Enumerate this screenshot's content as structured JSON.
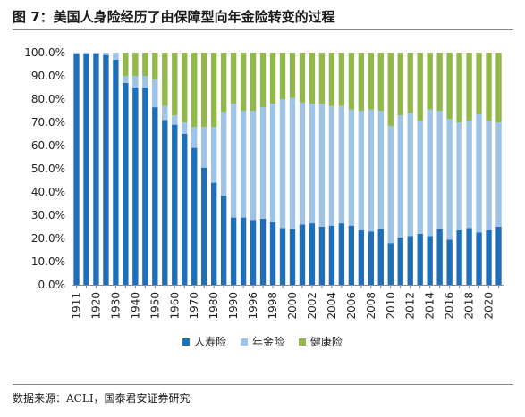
{
  "title": "图 7：美国人身险经历了由保障型向年金险转变的过程",
  "source": "数据来源：ACLI，国泰君安证券研究",
  "colors": {
    "life": "#1f6fb8",
    "annuity": "#9dc3e6",
    "health": "#92b84b",
    "axis": "#8c8c8c"
  },
  "chart_data": {
    "type": "bar",
    "stacked": true,
    "percent": true,
    "ylim": [
      0,
      100
    ],
    "yticks": [
      "0.0%",
      "10.0%",
      "20.0%",
      "30.0%",
      "40.0%",
      "50.0%",
      "60.0%",
      "70.0%",
      "80.0%",
      "90.0%",
      "100.0%"
    ],
    "categories": [
      "1911",
      "1915",
      "1920",
      "1925",
      "1930",
      "1935",
      "1940",
      "1945",
      "1950",
      "1955",
      "1960",
      "1965",
      "1970",
      "1975",
      "1980",
      "1985",
      "1990",
      "1995",
      "1996",
      "1997",
      "1998",
      "1999",
      "2000",
      "2001",
      "2002",
      "2003",
      "2004",
      "2005",
      "2006",
      "2007",
      "2008",
      "2009",
      "2010",
      "2011",
      "2012",
      "2013",
      "2014",
      "2015",
      "2016",
      "2017",
      "2018",
      "2019",
      "2020",
      "2021"
    ],
    "xtick_labels": [
      "1911",
      "",
      "1920",
      "",
      "1930",
      "",
      "1940",
      "",
      "1950",
      "",
      "1960",
      "",
      "1970",
      "",
      "1980",
      "",
      "1990",
      "",
      "1996",
      "",
      "1998",
      "",
      "2000",
      "",
      "2002",
      "",
      "2004",
      "",
      "2006",
      "",
      "2008",
      "",
      "2010",
      "",
      "2012",
      "",
      "2014",
      "",
      "2016",
      "",
      "2018",
      "",
      "2020",
      ""
    ],
    "series": [
      {
        "name": "人寿险",
        "color": "#1f6fb8",
        "values": [
          99.5,
          99.5,
          99.5,
          99.0,
          97.0,
          87.0,
          85.0,
          85.0,
          76.5,
          71.0,
          69.0,
          65.0,
          59.0,
          50.5,
          44.0,
          38.5,
          29.0,
          29.0,
          28.0,
          28.5,
          27.0,
          24.5,
          24.0,
          26.0,
          26.5,
          25.0,
          25.5,
          26.5,
          25.5,
          23.5,
          23.0,
          24.0,
          18.0,
          20.5,
          21.0,
          22.0,
          21.0,
          24.0,
          19.5,
          23.5,
          24.5,
          22.5,
          23.5,
          25.0
        ]
      },
      {
        "name": "年金险",
        "color": "#9dc3e6",
        "values": [
          0.5,
          0.5,
          0.5,
          1.0,
          3.0,
          3.0,
          5.0,
          5.0,
          12.0,
          6.0,
          4.0,
          5.0,
          9.0,
          17.5,
          24.0,
          36.0,
          49.0,
          46.0,
          47.0,
          48.0,
          51.0,
          55.5,
          56.5,
          52.5,
          51.5,
          53.0,
          51.5,
          50.5,
          50.0,
          51.5,
          52.5,
          51.0,
          50.5,
          52.5,
          53.0,
          48.5,
          54.5,
          51.0,
          52.0,
          46.5,
          46.0,
          51.0,
          47.0,
          45.0
        ]
      },
      {
        "name": "健康险",
        "color": "#92b84b",
        "values": [
          0.0,
          0.0,
          0.0,
          0.0,
          0.0,
          10.0,
          10.0,
          10.0,
          11.5,
          23.0,
          27.0,
          30.0,
          32.0,
          32.0,
          32.0,
          25.5,
          22.0,
          25.0,
          25.0,
          23.5,
          22.0,
          20.0,
          19.5,
          21.5,
          22.0,
          22.0,
          23.0,
          23.0,
          24.5,
          25.0,
          24.5,
          25.0,
          31.5,
          27.0,
          26.0,
          29.5,
          24.5,
          25.0,
          28.5,
          30.0,
          29.5,
          26.5,
          29.5,
          30.0
        ]
      }
    ]
  }
}
